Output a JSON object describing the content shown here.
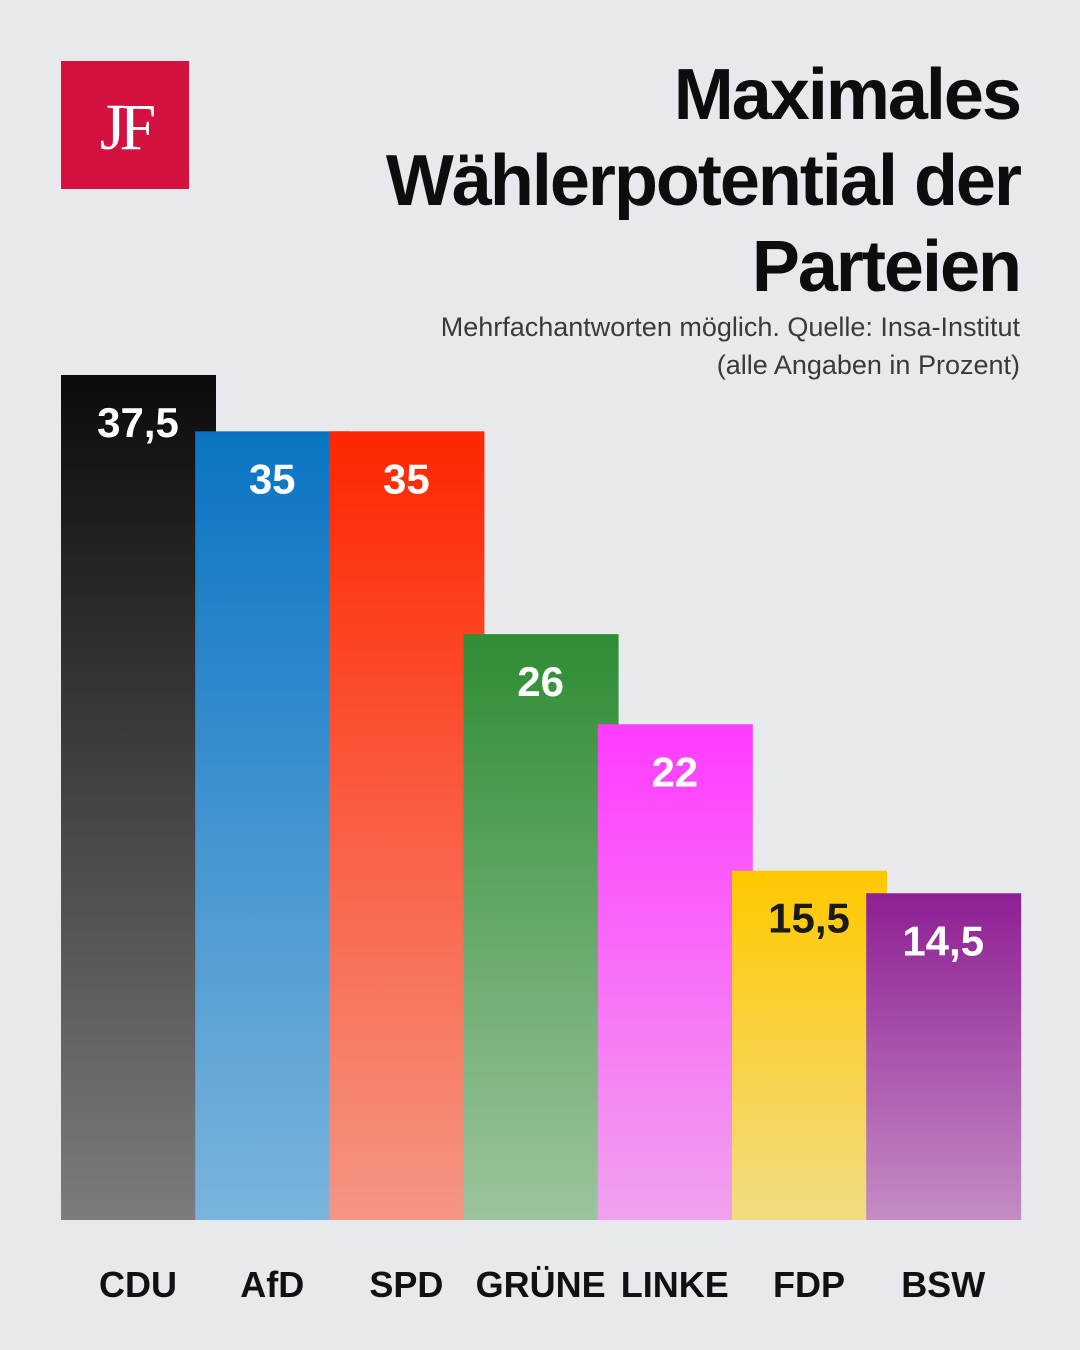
{
  "brand": {
    "logo_text": "JF",
    "logo_color": "#d41241"
  },
  "header": {
    "title_lines": [
      "Maximales",
      "Wählerpotential der",
      "Parteien"
    ],
    "subtitle_lines": [
      "Mehrfachantworten möglich. Quelle: Insa-Institut",
      "(alle Angaben in Prozent)"
    ]
  },
  "chart_data": {
    "type": "bar",
    "title": "Maximales Wählerpotential der Parteien",
    "subtitle": "Mehrfachantworten möglich. Quelle: Insa-Institut (alle Angaben in Prozent)",
    "categories": [
      "CDU",
      "AfD",
      "SPD",
      "GRÜNE",
      "LINKE",
      "FDP",
      "BSW"
    ],
    "values": [
      37.5,
      35,
      35,
      26,
      22,
      15.5,
      14.5
    ],
    "value_labels": [
      "37,5",
      "35",
      "35",
      "26",
      "22",
      "15,5",
      "14,5"
    ],
    "colors": [
      {
        "top": "#0b0b0b",
        "bottom": "#7c7c7e",
        "label": "#ffffff"
      },
      {
        "top": "#0a74c4",
        "bottom": "#7ab4dc",
        "label": "#ffffff"
      },
      {
        "top": "#ff2600",
        "bottom": "#f49684",
        "label": "#ffffff"
      },
      {
        "top": "#2f8d34",
        "bottom": "#9cc49e",
        "label": "#ffffff"
      },
      {
        "top": "#ff3bff",
        "bottom": "#f0a2ee",
        "label": "#ffffff"
      },
      {
        "top": "#ffc800",
        "bottom": "#f1dc82",
        "label": "#1a1a1a"
      },
      {
        "top": "#8e1f94",
        "bottom": "#c48cc4",
        "label": "#ffffff"
      }
    ],
    "ylim": [
      0,
      37.5
    ],
    "grid": false,
    "legend": "none"
  }
}
